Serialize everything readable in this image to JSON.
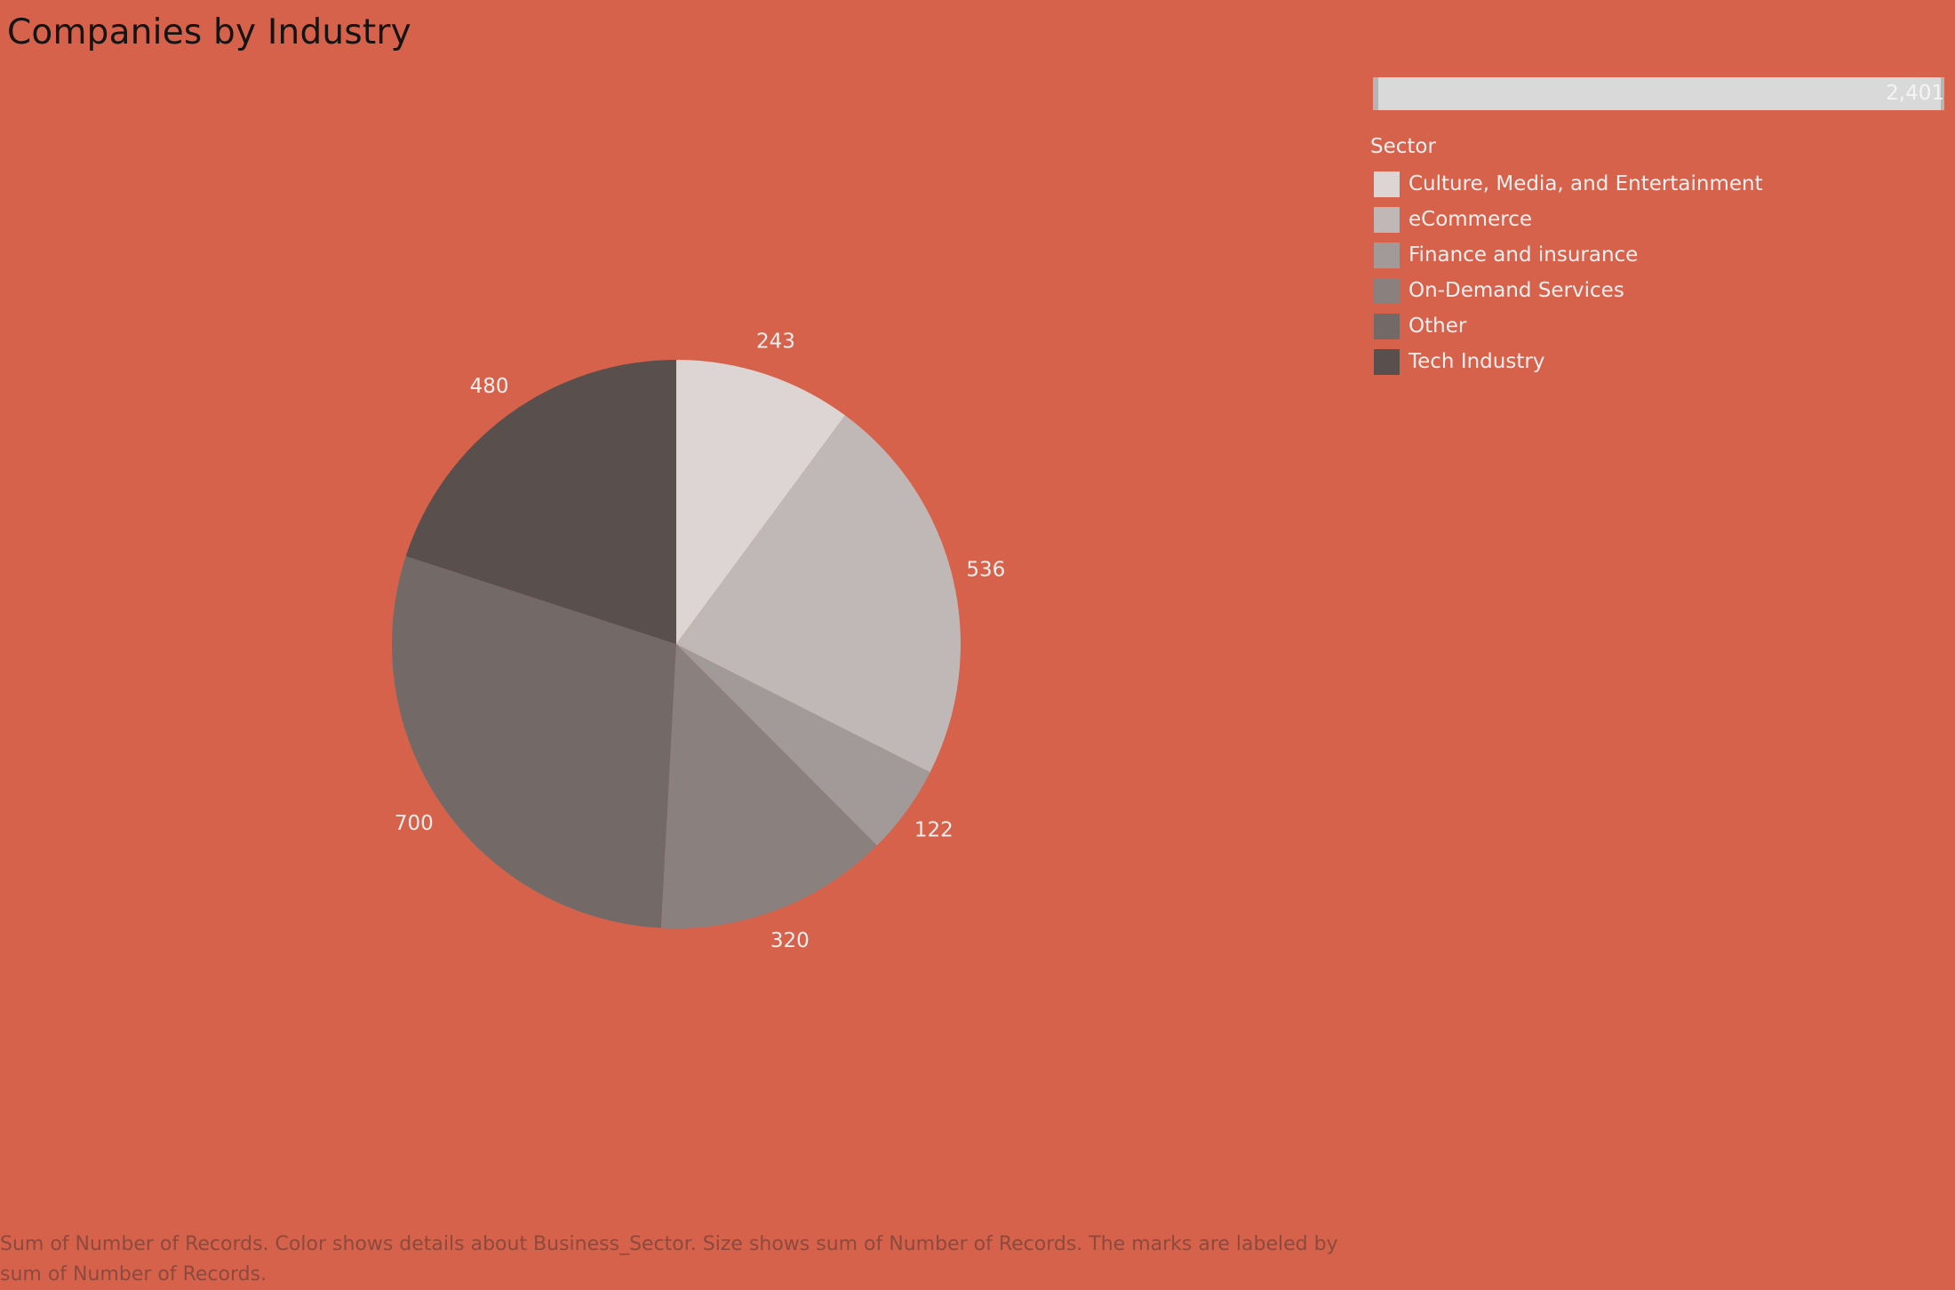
{
  "chart_data": {
    "type": "pie",
    "title": "Companies by Industry",
    "legend_title": "Sector",
    "legend_position": "right",
    "categories": [
      "Culture, Media, and Entertainment",
      "eCommerce",
      "Finance and insurance",
      "On-Demand Services",
      "Other",
      "Tech Industry"
    ],
    "values": [
      243,
      536,
      122,
      320,
      700,
      480
    ],
    "colors": [
      "#DCD5D4",
      "#C0B8B6",
      "#A29A98",
      "#8A817E",
      "#736A68",
      "#594F4D"
    ],
    "size_legend_value": "2,401",
    "caption": "Sum of Number of Records.  Color shows details about Business_Sector.  Size shows sum of Number of Records.  The marks are labeled by sum of Number of Records."
  }
}
